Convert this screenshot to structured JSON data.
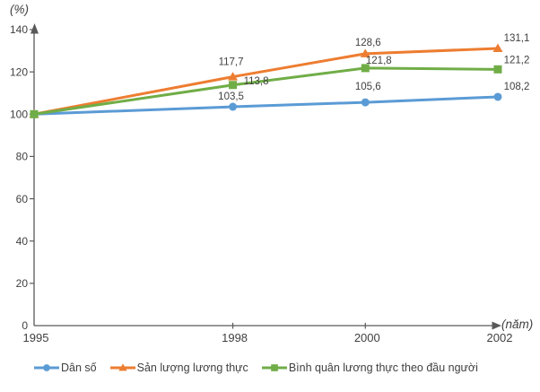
{
  "chart_data": {
    "type": "line",
    "title": "",
    "x": [
      1995,
      1998,
      2000,
      2002
    ],
    "x_tick_labels": [
      "1995",
      "1998",
      "2000",
      "2002"
    ],
    "x_axis_unit": "(năm)",
    "y_axis_unit": "(%)",
    "y_ticks": [
      0,
      20,
      40,
      60,
      80,
      100,
      120,
      140
    ],
    "xlim": [
      1995,
      2002
    ],
    "ylim": [
      0,
      140
    ],
    "grid": false,
    "legend_position": "bottom",
    "axis_color": "#595959",
    "text_color": "#404040",
    "series": [
      {
        "name": "Dân số",
        "color": "#5B9BD5",
        "marker": "circle",
        "values": [
          100,
          103.5,
          105.6,
          108.2
        ],
        "point_labels": [
          "",
          "103,5",
          "105,6",
          "108,2"
        ],
        "label_offsets": [
          null,
          [
            -2,
            -12
          ],
          [
            3,
            -18
          ],
          [
            21,
            -12
          ]
        ]
      },
      {
        "name": "Sản lượng lương thực",
        "color": "#ED7D31",
        "marker": "triangle",
        "values": [
          100,
          117.7,
          128.6,
          131.1
        ],
        "point_labels": [
          "",
          "117,7",
          "128,6",
          "131,1"
        ],
        "label_offsets": [
          null,
          [
            -2,
            -17
          ],
          [
            3,
            -13
          ],
          [
            21,
            -12
          ]
        ]
      },
      {
        "name": "Bình quân lương thực theo đầu người",
        "color": "#70AD47",
        "marker": "square",
        "values": [
          100,
          113.8,
          121.8,
          121.2
        ],
        "point_labels": [
          "",
          "113,8",
          "121,8",
          "121,2"
        ],
        "label_offsets": [
          null,
          [
            26,
            -5
          ],
          [
            15,
            -9
          ],
          [
            21,
            -11
          ]
        ]
      }
    ]
  }
}
